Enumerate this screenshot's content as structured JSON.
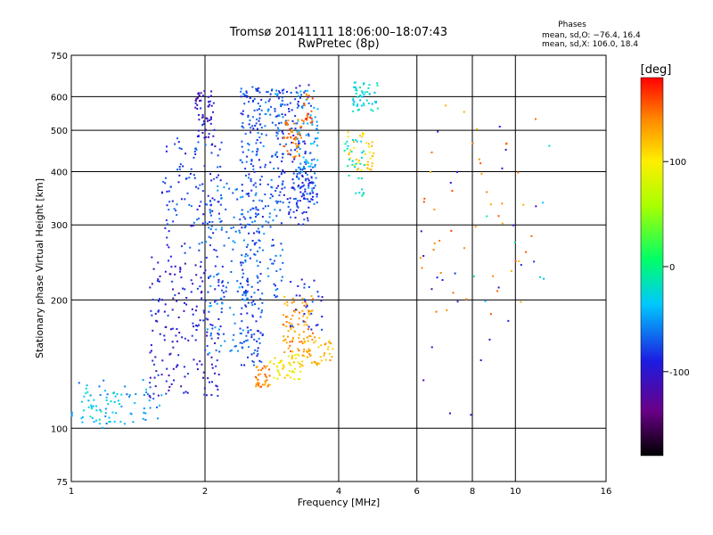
{
  "chart_data": {
    "type": "scatter",
    "title": "Tromsø 20141111 18:06:00–18:07:43",
    "subtitle": "RwPretec (8p)",
    "xlabel": "Frequency [MHz]",
    "ylabel": "Stationary phase Virtual Height [km]",
    "xscale": "log",
    "yscale": "log",
    "xlim": [
      1,
      16
    ],
    "ylim": [
      75,
      750
    ],
    "x_ticks": [
      1,
      2,
      4,
      6,
      8,
      10,
      16
    ],
    "y_ticks": [
      75,
      100,
      200,
      300,
      400,
      500,
      600,
      750
    ],
    "grid": true,
    "stats": {
      "heading": "Phases",
      "line_o": "mean, sd,O: −76.4, 16.4",
      "line_x": "mean, sd,X: 106.0, 18.4"
    },
    "colorbar": {
      "label": "[deg]",
      "range": [
        -180,
        180
      ],
      "ticks": [
        100,
        0,
        -100
      ],
      "colormap": "rainbow"
    },
    "clusters": [
      {
        "x": [
          1.0,
          1.6
        ],
        "y": [
          100,
          130
        ],
        "phase": -60,
        "n": 60
      },
      {
        "x": [
          1.0,
          1.3
        ],
        "y": [
          103,
          125
        ],
        "phase": -35,
        "n": 30
      },
      {
        "x": [
          1.5,
          2.2
        ],
        "y": [
          118,
          260
        ],
        "phase": -105,
        "n": 200
      },
      {
        "x": [
          1.6,
          2.2
        ],
        "y": [
          260,
          480
        ],
        "phase": -90,
        "n": 120
      },
      {
        "x": [
          1.9,
          2.1
        ],
        "y": [
          480,
          620
        ],
        "phase": -110,
        "n": 60
      },
      {
        "x": [
          2.0,
          2.5
        ],
        "y": [
          150,
          380
        ],
        "phase": -70,
        "n": 110
      },
      {
        "x": [
          2.4,
          2.7
        ],
        "y": [
          140,
          640
        ],
        "phase": -85,
        "n": 260
      },
      {
        "x": [
          2.7,
          3.0
        ],
        "y": [
          200,
          640
        ],
        "phase": -75,
        "n": 110
      },
      {
        "x": [
          2.9,
          3.5
        ],
        "y": [
          300,
          640
        ],
        "phase": -95,
        "n": 140
      },
      {
        "x": [
          3.2,
          3.6
        ],
        "y": [
          360,
          620
        ],
        "phase": -60,
        "n": 80
      },
      {
        "x": [
          3.0,
          3.3
        ],
        "y": [
          430,
          530
        ],
        "phase": 145,
        "n": 45
      },
      {
        "x": [
          3.3,
          3.5
        ],
        "y": [
          520,
          610
        ],
        "phase": 150,
        "n": 20
      },
      {
        "x": [
          3.2,
          3.6
        ],
        "y": [
          330,
          400
        ],
        "phase": -90,
        "n": 40
      },
      {
        "x": [
          2.6,
          2.8
        ],
        "y": [
          125,
          140
        ],
        "phase": 140,
        "n": 35
      },
      {
        "x": [
          2.8,
          3.3
        ],
        "y": [
          130,
          150
        ],
        "phase": 100,
        "n": 50
      },
      {
        "x": [
          3.0,
          3.5
        ],
        "y": [
          150,
          205
        ],
        "phase": 135,
        "n": 80
      },
      {
        "x": [
          3.3,
          3.9
        ],
        "y": [
          140,
          165
        ],
        "phase": 125,
        "n": 50
      },
      {
        "x": [
          3.1,
          3.7
        ],
        "y": [
          170,
          230
        ],
        "phase": -100,
        "n": 30
      },
      {
        "x": [
          4.2,
          4.8
        ],
        "y": [
          400,
          500
        ],
        "phase": 110,
        "n": 40
      },
      {
        "x": [
          4.3,
          4.9
        ],
        "y": [
          550,
          650
        ],
        "phase": -35,
        "n": 50
      },
      {
        "x": [
          4.1,
          4.6
        ],
        "y": [
          350,
          480
        ],
        "phase": -30,
        "n": 30
      },
      {
        "x": [
          6.1,
          11.2
        ],
        "y": [
          180,
          600
        ],
        "phase": 140,
        "n": 45
      },
      {
        "x": [
          6.1,
          11.2
        ],
        "y": [
          100,
          600
        ],
        "phase": -110,
        "n": 25
      },
      {
        "x": [
          8.0,
          12.5
        ],
        "y": [
          150,
          500
        ],
        "phase": -30,
        "n": 8
      }
    ]
  }
}
